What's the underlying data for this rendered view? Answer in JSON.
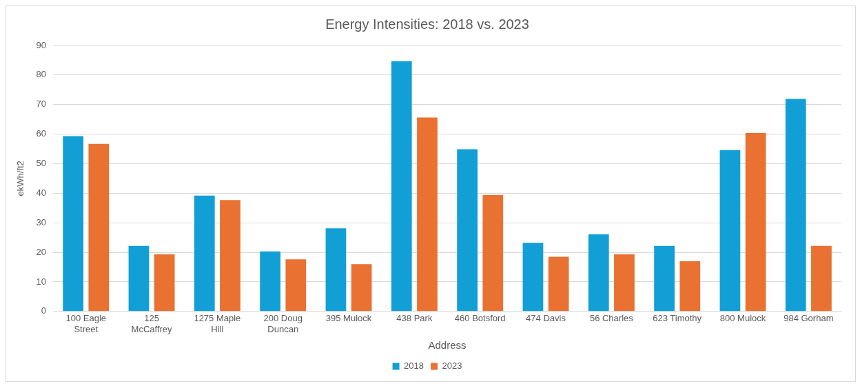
{
  "chart_data": {
    "type": "bar",
    "title": "Energy Intensities: 2018 vs. 2023",
    "xlabel": "Address",
    "ylabel": "ekWh/ft2",
    "categories": [
      "100 Eagle Street",
      "125 McCaffrey",
      "1275 Maple Hill",
      "200 Doug Duncan",
      "395 Mulock",
      "438 Park",
      "460 Botsford",
      "474 Davis",
      "56 Charles",
      "623 Timothy",
      "800 Mulock",
      "984 Gorham"
    ],
    "series": [
      {
        "name": "2018",
        "color": "#119fd6",
        "values": [
          59.3,
          22.2,
          39.2,
          20.3,
          28.1,
          84.7,
          54.9,
          23.2,
          26.1,
          22.2,
          54.6,
          71.9
        ]
      },
      {
        "name": "2023",
        "color": "#e97132",
        "values": [
          56.7,
          19.3,
          37.7,
          17.6,
          16.0,
          65.6,
          39.4,
          18.5,
          19.3,
          17.0,
          60.4,
          22.2
        ]
      }
    ],
    "ylim": [
      0,
      90
    ],
    "yticks": [
      0,
      10,
      20,
      30,
      40,
      50,
      60,
      70,
      80,
      90
    ],
    "grid": "y",
    "legend": "bottom"
  }
}
